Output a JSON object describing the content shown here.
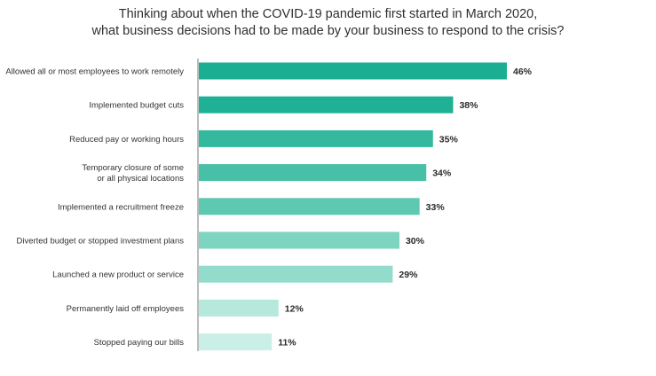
{
  "chart_data": {
    "type": "bar",
    "orientation": "horizontal",
    "title_lines": [
      "Thinking about when the COVID-19 pandemic first started in March 2020,",
      "what business decisions had to be made by your business to respond to the crisis?"
    ],
    "categories": [
      [
        "Allowed all or most employees to work remotely"
      ],
      [
        "Implemented budget cuts"
      ],
      [
        "Reduced pay or working hours"
      ],
      [
        "Temporary closure of some",
        "or all physical locations"
      ],
      [
        "Implemented a recruitment freeze"
      ],
      [
        "Diverted budget or stopped investment plans"
      ],
      [
        "Launched a new product or service"
      ],
      [
        "Permanently laid off employees"
      ],
      [
        "Stopped paying our bills"
      ]
    ],
    "values": [
      46,
      38,
      35,
      34,
      33,
      30,
      29,
      12,
      11
    ],
    "value_labels": [
      "46%",
      "38%",
      "35%",
      "34%",
      "33%",
      "30%",
      "29%",
      "12%",
      "11%"
    ],
    "bar_colors": [
      "#1bae93",
      "#1fb196",
      "#34b99f",
      "#48c0a7",
      "#5ec8b0",
      "#7dd4c0",
      "#93dccb",
      "#b6e8dc",
      "#c9efe6"
    ],
    "xlim": [
      0,
      46
    ],
    "grid": false,
    "legend": "none"
  }
}
